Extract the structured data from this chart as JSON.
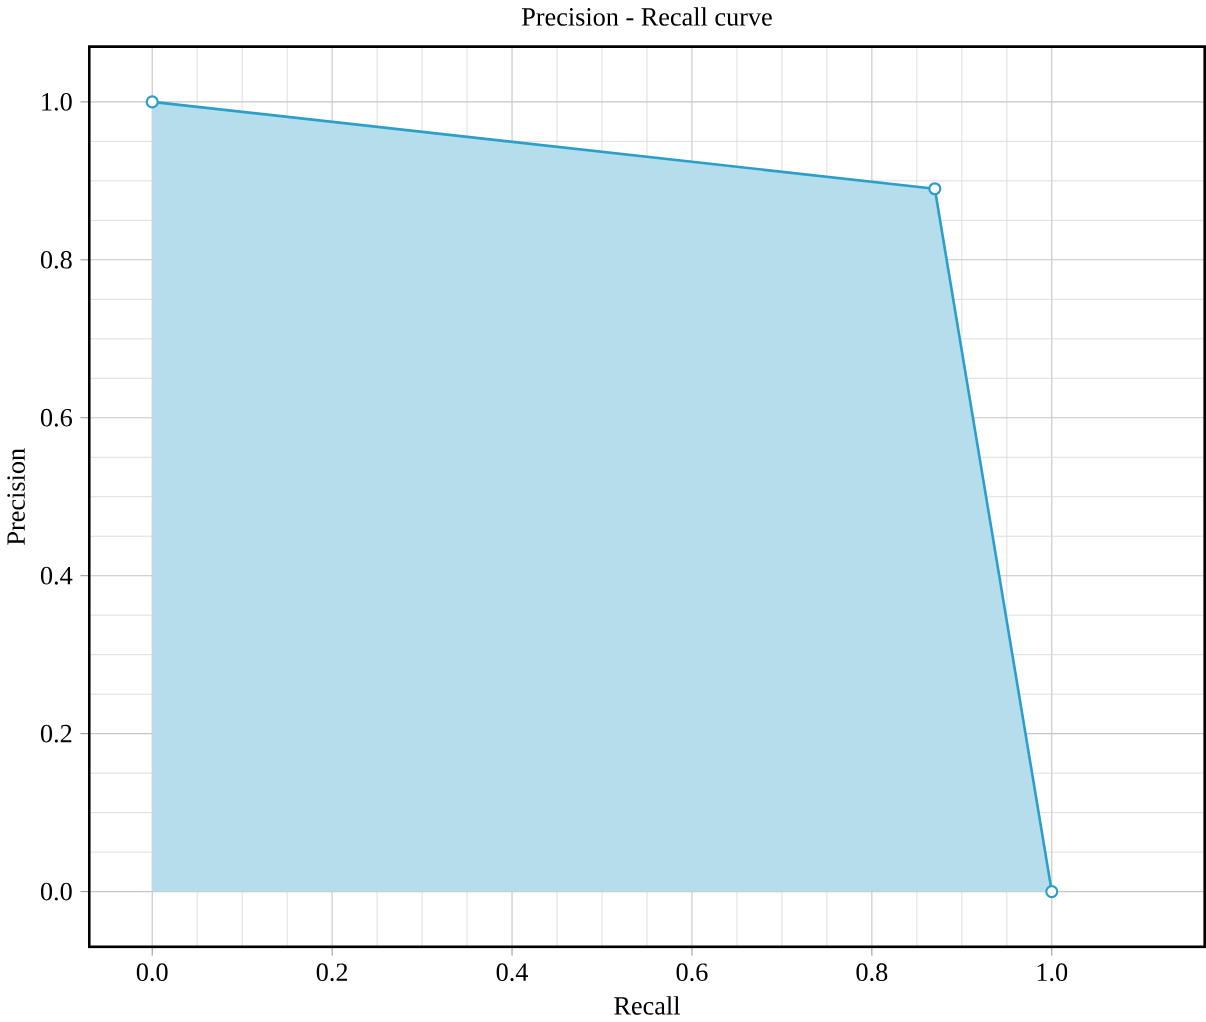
{
  "chart_data": {
    "type": "area",
    "title": "Precision - Recall curve",
    "xlabel": "Recall",
    "ylabel": "Precision",
    "x": [
      0.0,
      0.87,
      1.0
    ],
    "series": [
      {
        "color": "#2b9fc9",
        "values": [
          1.0,
          0.89,
          0.0
        ]
      }
    ],
    "xlim": [
      -0.07,
      1.17
    ],
    "ylim": [
      -0.07,
      1.07
    ],
    "xticks": [
      {
        "value": 0.0,
        "label": "0.0"
      },
      {
        "value": 0.2,
        "label": "0.2"
      },
      {
        "value": 0.4,
        "label": "0.4"
      },
      {
        "value": 0.6,
        "label": "0.6"
      },
      {
        "value": 0.8,
        "label": "0.8"
      },
      {
        "value": 1.0,
        "label": "1.0"
      }
    ],
    "yticks": [
      {
        "value": 0.0,
        "label": "0.0"
      },
      {
        "value": 0.2,
        "label": "0.2"
      },
      {
        "value": 0.4,
        "label": "0.4"
      },
      {
        "value": 0.6,
        "label": "0.6"
      },
      {
        "value": 0.8,
        "label": "0.8"
      },
      {
        "value": 1.0,
        "label": "1.0"
      }
    ],
    "grid": true,
    "marker": "circle"
  }
}
